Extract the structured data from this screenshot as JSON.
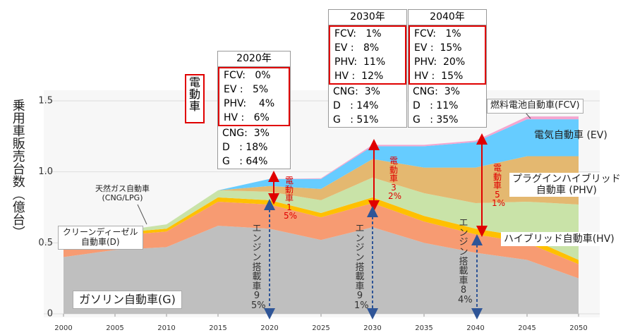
{
  "chart_data": {
    "type": "area",
    "stacked": true,
    "y_label": "乗用車販売台数（億台）",
    "x": [
      2000,
      2005,
      2010,
      2015,
      2020,
      2025,
      2030,
      2035,
      2040,
      2045,
      2050
    ],
    "xlim": [
      2000,
      2050
    ],
    "xticks": [
      2000,
      2005,
      2010,
      2015,
      2020,
      2025,
      2030,
      2035,
      2040,
      2045,
      2050
    ],
    "ylim": [
      0,
      1.5
    ],
    "yticks": [
      0,
      0.5,
      {
        "value": 1,
        "label": "1.0"
      },
      1.5
    ],
    "series": [
      {
        "name": "ガソリン自動車(G)",
        "color": "#bfbfbf",
        "values": [
          0.4,
          0.45,
          0.47,
          0.62,
          0.6,
          0.52,
          0.61,
          0.5,
          0.43,
          0.38,
          0.25
        ]
      },
      {
        "name": "クリーンディーゼル\n自動車(D)",
        "color": "#f79b72",
        "values": [
          0.1,
          0.1,
          0.11,
          0.17,
          0.17,
          0.16,
          0.17,
          0.15,
          0.13,
          0.12,
          0.1
        ]
      },
      {
        "name": "天然ガス自動車\n(CNG/LPG)",
        "color": "#ffc000",
        "values": [
          0.01,
          0.02,
          0.02,
          0.03,
          0.03,
          0.03,
          0.04,
          0.04,
          0.04,
          0.04,
          0.03
        ]
      },
      {
        "name": "ハイブリッド自動車(HV)",
        "color": "#c9e3a8",
        "values": [
          0,
          0.01,
          0.03,
          0.05,
          0.06,
          0.09,
          0.14,
          0.16,
          0.18,
          0.25,
          0.39
        ]
      },
      {
        "name": "プラグインハイブリッド\n自動車 (PHV)",
        "color": "#e4b870",
        "values": [
          0,
          0,
          0,
          0,
          0.04,
          0.08,
          0.13,
          0.18,
          0.25,
          0.32,
          0.34
        ]
      },
      {
        "name": "電気自動車 (EV)",
        "color": "#66ccff",
        "values": [
          0,
          0,
          0,
          0,
          0.05,
          0.07,
          0.09,
          0.15,
          0.18,
          0.26,
          0.26
        ]
      },
      {
        "name": "燃料電池自動車(FCV)",
        "color": "#f4a6d0",
        "values": [
          0,
          0,
          0,
          0,
          0,
          0.005,
          0.01,
          0.01,
          0.01,
          0.02,
          0.02
        ]
      }
    ],
    "electric_label": "電動車",
    "boxes": [
      {
        "title": "2020年",
        "rows": [
          "FCV:   0%",
          "EV :   5%",
          "PHV:    4%",
          "HV :   6%",
          "CNG:  3%",
          "D   : 18%",
          "G   : 64%"
        ]
      },
      {
        "title": "2030年",
        "rows": [
          "FCV:   1%",
          "EV :   8%",
          "PHV:  11%",
          "HV :  12%",
          "CNG:  3%",
          "D   : 14%",
          "G   : 51%"
        ]
      },
      {
        "title": "2040年",
        "rows": [
          "FCV:   1%",
          "EV :  15%",
          "PHV:  20%",
          "HV :  15%",
          "CNG:  3%",
          "D   : 11%",
          "G   : 35%"
        ]
      }
    ],
    "electric_shares": [
      "電動車\n15%",
      "電動車\n32%",
      "電動車\n51%"
    ],
    "engine_shares": [
      "エンジン搭載車\n95%",
      "エンジン搭載車\n91%",
      "エンジン搭載車\n84%"
    ]
  }
}
